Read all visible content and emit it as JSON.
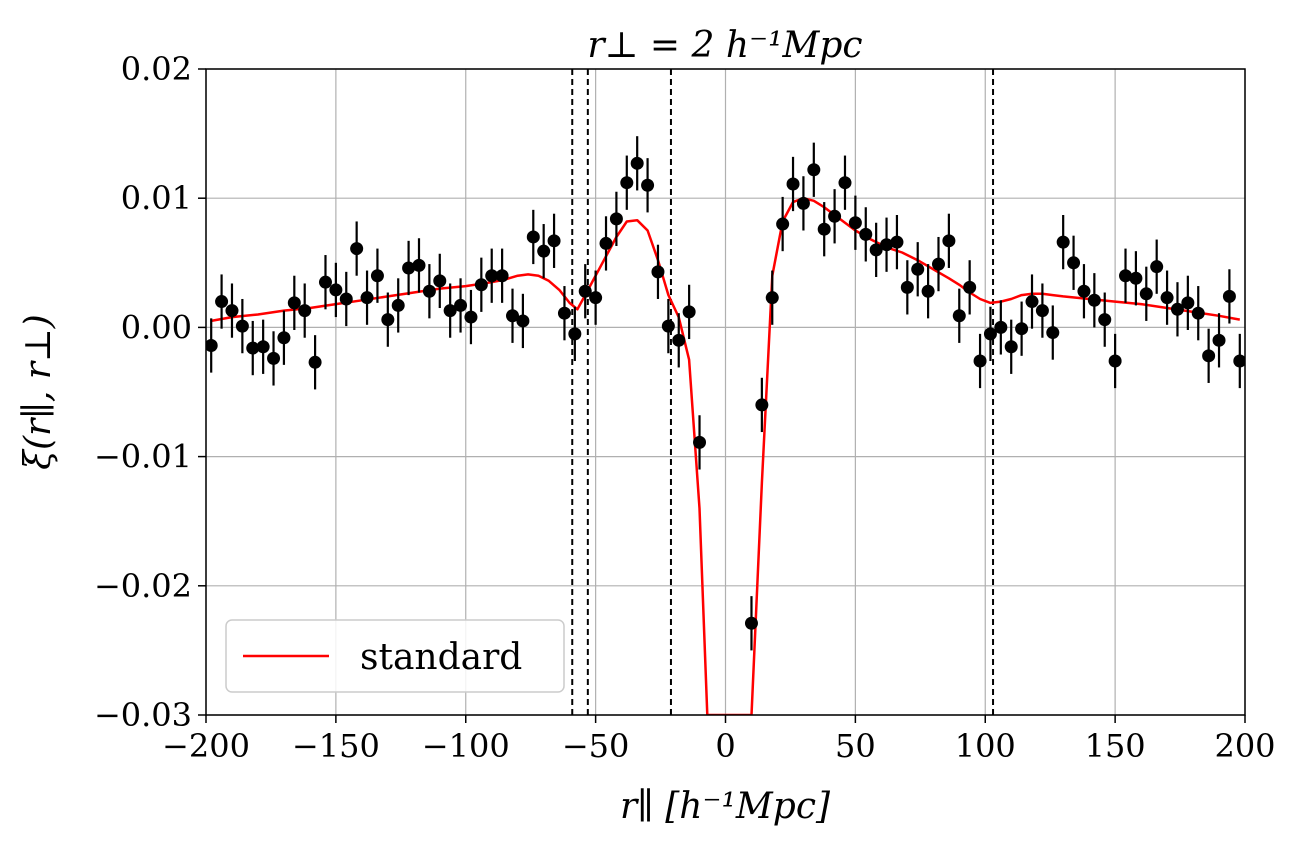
{
  "chart_data": {
    "type": "line",
    "title": "r⊥ = 2 h⁻¹Mpc",
    "xlabel": "r∥ [h⁻¹Mpc]",
    "ylabel": "ξ(r∥, r⊥)",
    "xlim": [
      -200,
      200
    ],
    "ylim": [
      -0.03,
      0.02
    ],
    "x_ticks": [
      -200,
      -150,
      -100,
      -50,
      0,
      50,
      100,
      150,
      200
    ],
    "x_tick_labels": [
      "−200",
      "−150",
      "−100",
      "−50",
      "0",
      "50",
      "100",
      "150",
      "200"
    ],
    "y_ticks": [
      -0.03,
      -0.02,
      -0.01,
      0.0,
      0.01,
      0.02
    ],
    "y_tick_labels": [
      "−0.03",
      "−0.02",
      "−0.01",
      "0.00",
      "0.01",
      "0.02"
    ],
    "grid": true,
    "legend": {
      "placement": "lower-left",
      "entries": [
        {
          "label": "standard",
          "color": "#ff0000"
        }
      ]
    },
    "vlines": [
      -59,
      -53,
      -21,
      103
    ],
    "series": [
      {
        "name": "data",
        "kind": "errorbar",
        "color": "#000000",
        "x": [
          -198,
          -194,
          -190,
          -186,
          -182,
          -178,
          -174,
          -170,
          -166,
          -162,
          -158,
          -154,
          -150,
          -146,
          -142,
          -138,
          -134,
          -130,
          -126,
          -122,
          -118,
          -114,
          -110,
          -106,
          -102,
          -98,
          -94,
          -90,
          -86,
          -82,
          -78,
          -74,
          -70,
          -66,
          -62,
          -58,
          -54,
          -50,
          -46,
          -42,
          -38,
          -34,
          -30,
          -26,
          -22,
          -18,
          -14,
          -10,
          10,
          14,
          18,
          22,
          26,
          30,
          34,
          38,
          42,
          46,
          50,
          54,
          58,
          62,
          66,
          70,
          74,
          78,
          82,
          86,
          90,
          94,
          98,
          102,
          106,
          110,
          114,
          118,
          122,
          126,
          130,
          134,
          138,
          142,
          146,
          150,
          154,
          158,
          162,
          166,
          170,
          174,
          178,
          182,
          186,
          190,
          194,
          198
        ],
        "y": [
          -0.0014,
          0.002,
          0.0013,
          0.0001,
          -0.0016,
          -0.0015,
          -0.0024,
          -0.0008,
          0.0019,
          0.0013,
          -0.0027,
          0.0035,
          0.0029,
          0.0022,
          0.0061,
          0.0023,
          0.004,
          0.0006,
          0.0017,
          0.0046,
          0.0048,
          0.0028,
          0.0036,
          0.0013,
          0.0017,
          0.0008,
          0.0033,
          0.004,
          0.004,
          0.0009,
          0.0005,
          0.007,
          0.0059,
          0.0067,
          0.0011,
          -0.0005,
          0.0028,
          0.0023,
          0.0065,
          0.0084,
          0.0112,
          0.0127,
          0.011,
          0.0043,
          0.0001,
          -0.001,
          0.0012,
          -0.0089,
          -0.0229,
          -0.006,
          0.0023,
          0.008,
          0.0111,
          0.0096,
          0.0122,
          0.0076,
          0.0086,
          0.0112,
          0.0081,
          0.0072,
          0.006,
          0.0064,
          0.0066,
          0.0031,
          0.0045,
          0.0028,
          0.0049,
          0.0067,
          0.0009,
          0.0031,
          -0.0026,
          -0.0005,
          0.0,
          -0.0015,
          -0.0001,
          0.002,
          0.0013,
          -0.0004,
          0.0066,
          0.005,
          0.0028,
          0.0021,
          0.0006,
          -0.0026,
          0.004,
          0.0038,
          0.0026,
          0.0047,
          0.0023,
          0.0014,
          0.0019,
          0.0011,
          -0.0022,
          -0.001,
          0.0024,
          -0.0026
        ],
        "yerr": 0.0021
      },
      {
        "name": "standard",
        "kind": "line",
        "color": "#ff0000",
        "x": [
          -198,
          -190,
          -180,
          -170,
          -160,
          -150,
          -140,
          -130,
          -120,
          -110,
          -100,
          -90,
          -85,
          -80,
          -76,
          -72,
          -68,
          -64,
          -60,
          -57,
          -54,
          -50,
          -46,
          -42,
          -38,
          -34,
          -30,
          -26,
          -22,
          -18,
          -14,
          -10,
          -7,
          10,
          14,
          18,
          22,
          26,
          30,
          34,
          38,
          42,
          46,
          50,
          56,
          62,
          68,
          74,
          80,
          86,
          90,
          94,
          98,
          102,
          106,
          110,
          114,
          118,
          122,
          126,
          130,
          140,
          150,
          160,
          170,
          180,
          190,
          198
        ],
        "y": [
          0.0005,
          0.0008,
          0.001,
          0.0013,
          0.0015,
          0.0018,
          0.0021,
          0.0024,
          0.0027,
          0.003,
          0.0032,
          0.0035,
          0.0037,
          0.004,
          0.0041,
          0.004,
          0.0036,
          0.0029,
          0.0019,
          0.0014,
          0.0025,
          0.004,
          0.0055,
          0.007,
          0.0082,
          0.0083,
          0.0075,
          0.0052,
          0.0025,
          0.0008,
          -0.0025,
          -0.014,
          -0.03,
          -0.03,
          -0.012,
          0.004,
          0.0082,
          0.0097,
          0.01,
          0.0098,
          0.0093,
          0.0087,
          0.0081,
          0.0075,
          0.0068,
          0.0062,
          0.0058,
          0.0052,
          0.0045,
          0.0038,
          0.0033,
          0.0027,
          0.0022,
          0.0019,
          0.002,
          0.0022,
          0.0025,
          0.0026,
          0.0026,
          0.0025,
          0.0024,
          0.0022,
          0.002,
          0.0018,
          0.0015,
          0.0012,
          0.0009,
          0.0006
        ]
      }
    ]
  }
}
